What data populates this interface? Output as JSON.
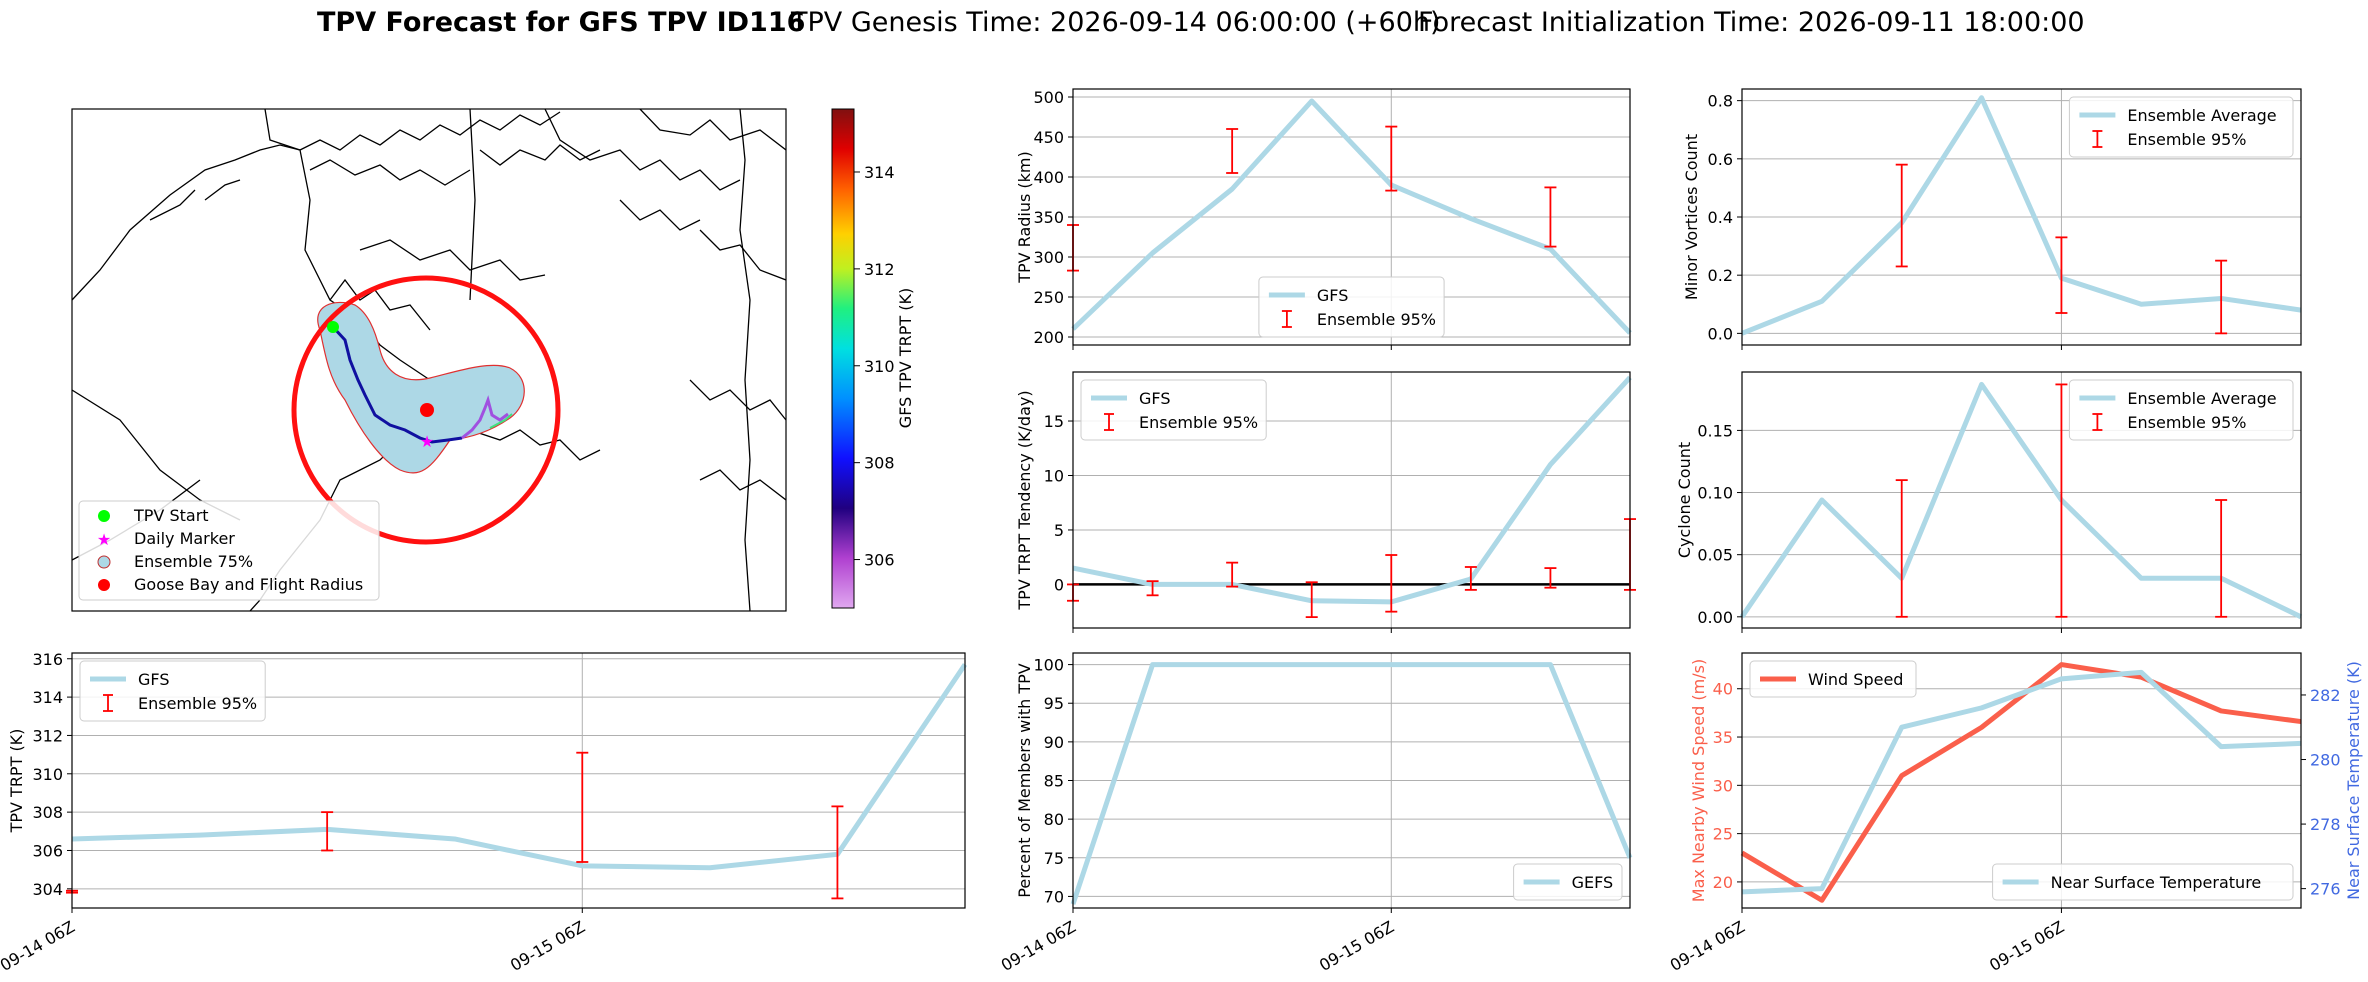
{
  "header": {
    "title_bold": "TPV Forecast for GFS TPV ID116",
    "genesis": "TPV Genesis Time: 2026-09-14 06:00:00 (+60h)",
    "init": "Forecast Initialization Time: 2026-09-11 18:00:00"
  },
  "colors": {
    "ens_line": "#add8e6",
    "err": "#ff0000",
    "wind": "#fa5f4b",
    "temp_axis": "#4169e1",
    "grid": "#b0b0b0"
  },
  "map": {
    "legend": [
      "TPV Start",
      "Daily Marker",
      "Ensemble 75%",
      "Goose Bay and Flight Radius"
    ],
    "colorbar_label": "GFS TPV TRPT (K)",
    "colorbar_ticks": [
      "306",
      "308",
      "310",
      "312",
      "314"
    ]
  },
  "chart_data": [
    {
      "id": "radius",
      "type": "line",
      "ylabel": "TPV Radius (km)",
      "x": [
        0,
        1,
        2,
        3,
        4,
        5,
        6,
        7
      ],
      "xlim": [
        0,
        7
      ],
      "ylim": [
        190,
        510
      ],
      "yticks": [
        200,
        250,
        300,
        350,
        400,
        450,
        500
      ],
      "series": [
        {
          "name": "GFS",
          "values": [
            210,
            305,
            385,
            495,
            390,
            348,
            310,
            205
          ]
        }
      ],
      "errorbars": {
        "name": "Ensemble 95%",
        "x": [
          0,
          2,
          4,
          6
        ],
        "low": [
          283,
          405,
          383,
          313
        ],
        "high": [
          340,
          460,
          463,
          387
        ]
      },
      "legend": "lower center"
    },
    {
      "id": "minor",
      "type": "line",
      "ylabel": "Minor Vortices Count",
      "x": [
        0,
        1,
        2,
        3,
        4,
        5,
        6,
        7
      ],
      "xlim": [
        0,
        7
      ],
      "ylim": [
        -0.04,
        0.84
      ],
      "yticks": [
        0.0,
        0.2,
        0.4,
        0.6,
        0.8
      ],
      "tick_decimals": 1,
      "series": [
        {
          "name": "Ensemble Average",
          "values": [
            0.0,
            0.11,
            0.38,
            0.81,
            0.19,
            0.1,
            0.12,
            0.08
          ]
        }
      ],
      "errorbars": {
        "name": "Ensemble 95%",
        "x": [
          2,
          4,
          6
        ],
        "low": [
          0.23,
          0.07,
          0.0
        ],
        "high": [
          0.58,
          0.33,
          0.25
        ]
      },
      "legend": "upper right"
    },
    {
      "id": "tendency",
      "type": "line",
      "ylabel": "TPV TRPT Tendency (K/day)",
      "x": [
        0,
        1,
        2,
        3,
        4,
        5,
        6,
        7
      ],
      "xlim": [
        0,
        7
      ],
      "ylim": [
        -4,
        19.5
      ],
      "yticks": [
        0,
        5,
        10,
        15
      ],
      "zero_line": true,
      "series": [
        {
          "name": "GFS",
          "values": [
            1.5,
            0.0,
            0.0,
            -1.5,
            -1.6,
            0.5,
            11,
            19
          ]
        }
      ],
      "errorbars": {
        "name": "Ensemble 95%",
        "x": [
          0,
          1,
          2,
          3,
          4,
          5,
          6,
          7
        ],
        "low": [
          -1.5,
          -1.0,
          -0.2,
          -3.0,
          -2.5,
          -0.5,
          -0.3,
          -0.5
        ],
        "high": [
          0.0,
          0.3,
          2.0,
          0.2,
          2.7,
          1.6,
          1.5,
          6.0
        ]
      },
      "legend": "upper left"
    },
    {
      "id": "cyclone",
      "type": "line",
      "ylabel": "Cyclone Count",
      "x": [
        0,
        1,
        2,
        3,
        4,
        5,
        6,
        7
      ],
      "xlim": [
        0,
        7
      ],
      "ylim": [
        -0.009,
        0.197
      ],
      "yticks": [
        0.0,
        0.05,
        0.1,
        0.15
      ],
      "tick_decimals": 2,
      "series": [
        {
          "name": "Ensemble Average",
          "values": [
            0.0,
            0.094,
            0.031,
            0.187,
            0.094,
            0.031,
            0.031,
            0.0
          ]
        }
      ],
      "errorbars": {
        "name": "Ensemble 95%",
        "x": [
          2,
          4,
          6
        ],
        "low": [
          0.0,
          0.0,
          0.0
        ],
        "high": [
          0.11,
          0.187,
          0.094
        ]
      },
      "legend": "upper right"
    },
    {
      "id": "trpt",
      "type": "line",
      "ylabel": "TPV TRPT (K)",
      "x": [
        0,
        1,
        2,
        3,
        4,
        5,
        6,
        7
      ],
      "xlim": [
        0,
        7
      ],
      "ylim": [
        303,
        316.3
      ],
      "yticks": [
        304,
        306,
        308,
        310,
        312,
        314,
        316
      ],
      "series": [
        {
          "name": "GFS",
          "values": [
            306.6,
            306.8,
            307.1,
            306.6,
            305.2,
            305.1,
            305.8,
            315.7
          ]
        }
      ],
      "errorbars": {
        "name": "Ensemble 95%",
        "x": [
          0,
          2,
          4,
          6
        ],
        "low": [
          303.8,
          306.0,
          305.4,
          303.5
        ],
        "high": [
          303.9,
          308.0,
          311.1,
          308.3
        ]
      },
      "xticks": {
        "positions": [
          0,
          4
        ],
        "labels": [
          "09-14 06Z",
          "09-15 06Z"
        ]
      },
      "legend": "upper left"
    },
    {
      "id": "percent",
      "type": "line",
      "ylabel": "Percent of Members with TPV",
      "x": [
        0,
        1,
        2,
        3,
        4,
        5,
        6,
        7
      ],
      "xlim": [
        0,
        7
      ],
      "ylim": [
        68.5,
        101.5
      ],
      "yticks": [
        70,
        75,
        80,
        85,
        90,
        95,
        100
      ],
      "series": [
        {
          "name": "GEFS",
          "values": [
            69,
            100,
            100,
            100,
            100,
            100,
            100,
            75
          ]
        }
      ],
      "xticks": {
        "positions": [
          0,
          4
        ],
        "labels": [
          "09-14 06Z",
          "09-15 06Z"
        ]
      },
      "legend": "lower right"
    },
    {
      "id": "wind",
      "type": "line",
      "ylabel": "Max Nearby Wind Speed (m/s)",
      "ylabel2": "Near Surface Temperature (K)",
      "x": [
        0,
        1,
        2,
        3,
        4,
        5,
        6,
        7
      ],
      "xlim": [
        0,
        7
      ],
      "ylim": [
        17.3,
        43.7
      ],
      "yticks": [
        20,
        25,
        30,
        35,
        40
      ],
      "ylim2": [
        275.4,
        283.3
      ],
      "yticks2": [
        276,
        278,
        280,
        282
      ],
      "series": [
        {
          "name": "Wind Speed",
          "values": [
            23,
            18.1,
            31,
            36,
            42.5,
            41.2,
            37.7,
            36.6
          ],
          "axis": "left"
        },
        {
          "name": "Near Surface Temperature",
          "values": [
            275.9,
            276.0,
            281.0,
            281.6,
            282.5,
            282.7,
            280.4,
            280.5
          ],
          "axis": "right"
        }
      ],
      "xticks": {
        "positions": [
          0,
          4
        ],
        "labels": [
          "09-14 06Z",
          "09-15 06Z"
        ]
      },
      "legend_left": "upper left",
      "legend_right": "lower right"
    }
  ]
}
